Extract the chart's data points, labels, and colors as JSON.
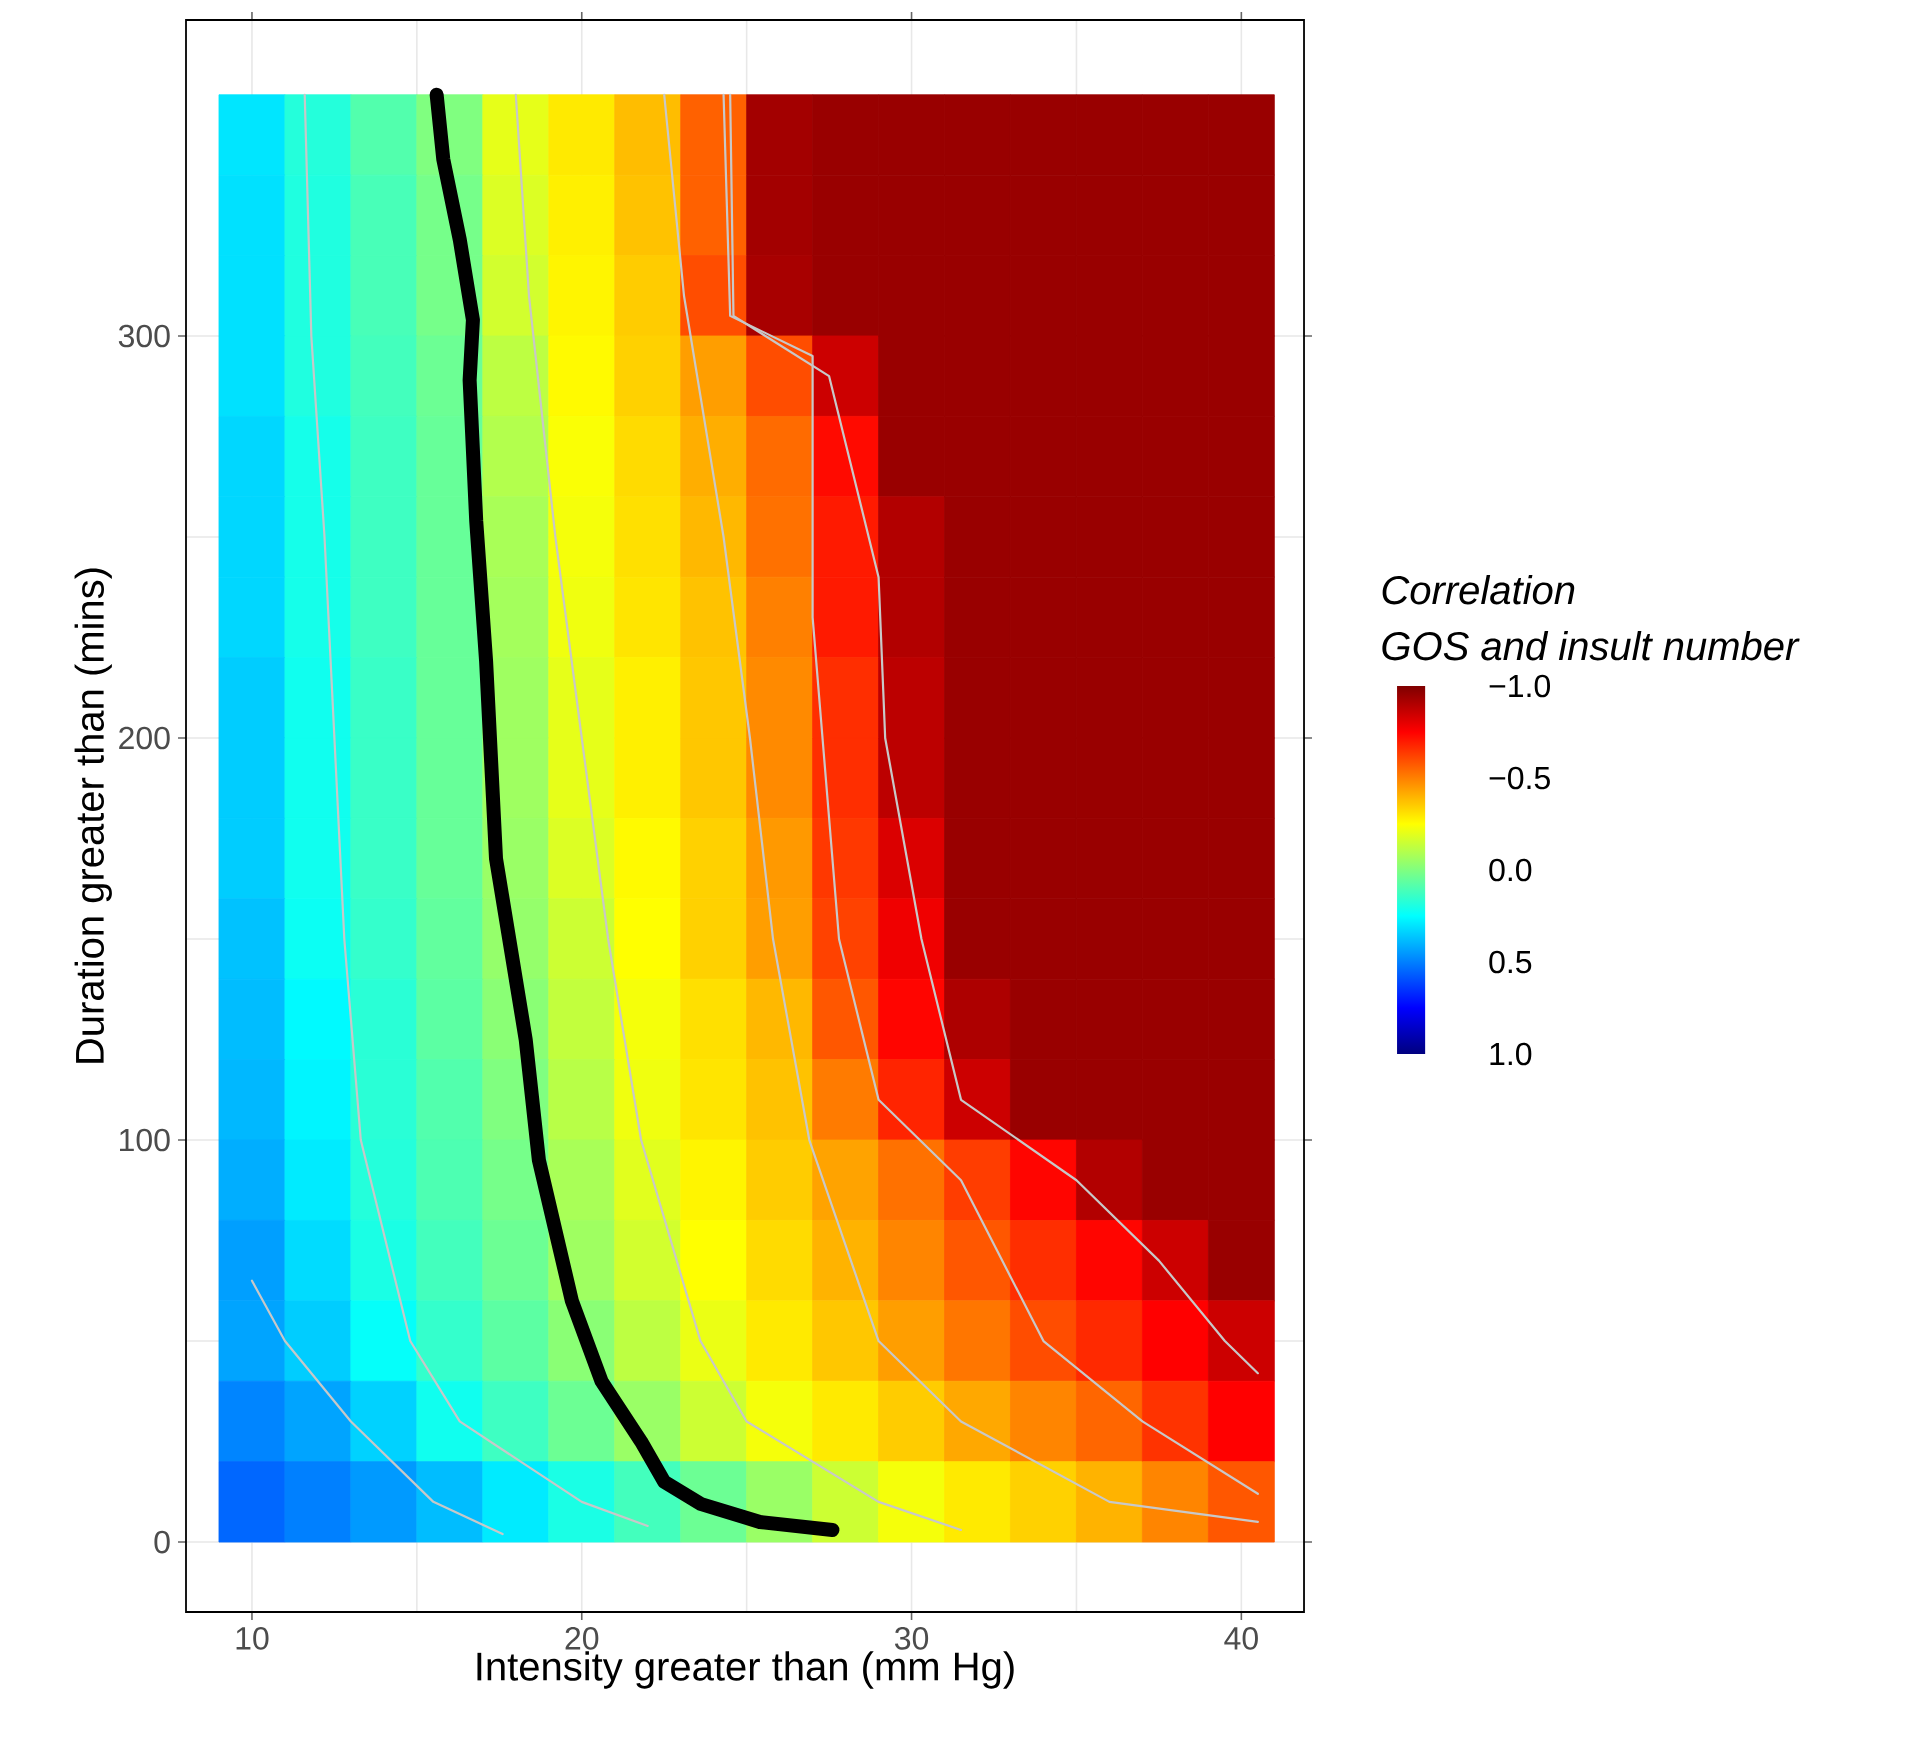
{
  "chart_data": {
    "type": "heatmap",
    "xlabel": "Intensity greater than (mm Hg)",
    "ylabel": "Duration greater than (mins)",
    "legend_title": "Correlation",
    "clabel": "GOS and insult number",
    "x": [
      10,
      12,
      14,
      16,
      18,
      20,
      22,
      24,
      26,
      28,
      30,
      32,
      34,
      36,
      38,
      40
    ],
    "y": [
      350,
      330,
      310,
      290,
      270,
      250,
      230,
      210,
      190,
      170,
      150,
      130,
      110,
      90,
      70,
      50,
      30,
      10
    ],
    "cells": [
      [
        0.3,
        0.18,
        0.09,
        0,
        -0.2,
        -0.29,
        -0.38,
        -0.56,
        -0.93,
        -0.95,
        -0.95,
        -0.95,
        -0.95,
        -0.95,
        -0.95,
        -0.95
      ],
      [
        0.31,
        0.19,
        0.11,
        0.02,
        -0.18,
        -0.28,
        -0.37,
        -0.56,
        -0.93,
        -0.95,
        -0.95,
        -0.95,
        -0.95,
        -0.95,
        -0.95,
        -0.95
      ],
      [
        0.31,
        0.19,
        0.11,
        0.02,
        -0.16,
        -0.27,
        -0.35,
        -0.6,
        -0.92,
        -0.95,
        -0.95,
        -0.95,
        -0.95,
        -0.95,
        -0.95,
        -0.95
      ],
      [
        0.31,
        0.19,
        0.12,
        0.04,
        -0.12,
        -0.26,
        -0.34,
        -0.44,
        -0.6,
        -0.85,
        -0.95,
        -0.95,
        -0.95,
        -0.95,
        -0.95,
        -0.95
      ],
      [
        0.33,
        0.21,
        0.13,
        0.05,
        -0.1,
        -0.24,
        -0.32,
        -0.41,
        -0.54,
        -0.73,
        -0.95,
        -0.95,
        -0.95,
        -0.95,
        -0.95,
        -0.95
      ],
      [
        0.33,
        0.21,
        0.13,
        0.05,
        -0.08,
        -0.23,
        -0.31,
        -0.39,
        -0.53,
        -0.7,
        -0.9,
        -0.95,
        -0.95,
        -0.95,
        -0.95,
        -0.95
      ],
      [
        0.33,
        0.21,
        0.13,
        0.05,
        -0.07,
        -0.22,
        -0.3,
        -0.37,
        -0.5,
        -0.7,
        -0.9,
        -0.95,
        -0.95,
        -0.95,
        -0.95,
        -0.95
      ],
      [
        0.35,
        0.22,
        0.14,
        0.05,
        -0.06,
        -0.2,
        -0.28,
        -0.36,
        -0.48,
        -0.66,
        -0.88,
        -0.95,
        -0.95,
        -0.95,
        -0.95,
        -0.95
      ],
      [
        0.35,
        0.22,
        0.14,
        0.05,
        -0.06,
        -0.2,
        -0.28,
        -0.36,
        -0.48,
        -0.66,
        -0.88,
        -0.95,
        -0.95,
        -0.95,
        -0.95,
        -0.95
      ],
      [
        0.35,
        0.22,
        0.14,
        0.05,
        -0.05,
        -0.18,
        -0.26,
        -0.34,
        -0.45,
        -0.64,
        -0.82,
        -0.95,
        -0.95,
        -0.95,
        -0.95,
        -0.95
      ],
      [
        0.37,
        0.23,
        0.15,
        0.06,
        -0.04,
        -0.15,
        -0.25,
        -0.34,
        -0.44,
        -0.62,
        -0.78,
        -0.95,
        -0.95,
        -0.95,
        -0.95,
        -0.95
      ],
      [
        0.38,
        0.26,
        0.17,
        0.07,
        -0.02,
        -0.13,
        -0.23,
        -0.31,
        -0.39,
        -0.58,
        -0.74,
        -0.91,
        -0.95,
        -0.95,
        -0.95,
        -0.95
      ],
      [
        0.39,
        0.27,
        0.17,
        0.09,
        0,
        -0.11,
        -0.22,
        -0.3,
        -0.37,
        -0.51,
        -0.68,
        -0.85,
        -0.95,
        -0.95,
        -0.95,
        -0.95
      ],
      [
        0.41,
        0.29,
        0.18,
        0.1,
        0.02,
        -0.08,
        -0.19,
        -0.27,
        -0.35,
        -0.43,
        -0.53,
        -0.63,
        -0.74,
        -0.9,
        -0.95,
        -0.95
      ],
      [
        0.44,
        0.32,
        0.2,
        0.12,
        0.04,
        -0.06,
        -0.16,
        -0.25,
        -0.32,
        -0.4,
        -0.49,
        -0.58,
        -0.66,
        -0.74,
        -0.85,
        -0.95
      ],
      [
        0.43,
        0.35,
        0.24,
        0.15,
        0.07,
        -0.02,
        -0.12,
        -0.21,
        -0.29,
        -0.36,
        -0.44,
        -0.52,
        -0.6,
        -0.67,
        -0.75,
        -0.85
      ],
      [
        0.49,
        0.43,
        0.34,
        0.22,
        0.13,
        0.04,
        -0.05,
        -0.15,
        -0.23,
        -0.29,
        -0.35,
        -0.42,
        -0.49,
        -0.55,
        -0.65,
        -0.75
      ],
      [
        0.55,
        0.5,
        0.45,
        0.38,
        0.29,
        0.2,
        0.12,
        0.04,
        -0.05,
        -0.15,
        -0.23,
        -0.29,
        -0.34,
        -0.4,
        -0.49,
        -0.58
      ]
    ],
    "series": [
      {
        "type": "line",
        "color": "#c8c8c8",
        "x": [
          10,
          11,
          13,
          15.5,
          17.6
        ],
        "values": [
          65,
          50,
          30,
          10,
          2
        ]
      },
      {
        "type": "line",
        "color": "#c8c8c8",
        "x": [
          11.6,
          11.8,
          12.2,
          12.5,
          12.8,
          13.3,
          14.8,
          16.3,
          20,
          22
        ],
        "values": [
          360,
          300,
          250,
          200,
          150,
          100,
          50,
          30,
          10,
          4
        ]
      },
      {
        "type": "line",
        "color": "#c8c8c8",
        "x": [
          18,
          18.4,
          19.2,
          20,
          20.8,
          21.8,
          23.6,
          25,
          29,
          31.5
        ],
        "values": [
          360,
          310,
          250,
          200,
          150,
          100,
          50,
          30,
          10,
          3
        ]
      },
      {
        "type": "line",
        "color": "#c8c8c8",
        "x": [
          22.5,
          23.1,
          24.3,
          25.1,
          25.8,
          26.9,
          29,
          31.5,
          36,
          40.5
        ],
        "values": [
          360,
          310,
          250,
          200,
          150,
          100,
          50,
          30,
          10,
          5
        ]
      },
      {
        "type": "line",
        "color": "#c8c8c8",
        "x": [
          24.3,
          24.5,
          27,
          27,
          27.3,
          27.8,
          29,
          31.5,
          34,
          37,
          40.5
        ],
        "values": [
          360,
          305,
          295,
          230,
          200,
          150,
          110,
          90,
          50,
          30,
          12
        ]
      },
      {
        "type": "line",
        "color": "#c8c8c8",
        "x": [
          24.5,
          24.6,
          27.5,
          29,
          29.2,
          30.3,
          31.5,
          35,
          37.5,
          39.5,
          40.5
        ],
        "values": [
          360,
          305,
          290,
          240,
          200,
          150,
          110,
          90,
          70,
          50,
          42
        ]
      },
      {
        "type": "line",
        "color": "#000000",
        "x": [
          27.6,
          25.4,
          23.6,
          22.5,
          21.8,
          20.6,
          19.7,
          18.7,
          18.3,
          17.4,
          17.1,
          16.8,
          16.6,
          16.7,
          16.3,
          15.8,
          15.6
        ],
        "values": [
          3,
          5,
          9.5,
          15,
          25,
          40,
          60,
          95,
          125,
          170,
          219,
          254,
          289,
          304,
          324,
          344,
          360
        ]
      }
    ],
    "xlim": [
      8,
      41.9
    ],
    "ylim": [
      -17.4,
      378.6
    ],
    "xticks": [
      10,
      20,
      30,
      40
    ],
    "yticks": [
      0,
      100,
      200,
      300
    ],
    "clim": [
      -1,
      1
    ],
    "cticks": [
      {
        "value": -1,
        "label": "−1.0"
      },
      {
        "value": -0.5,
        "label": "−0.5"
      },
      {
        "value": 0,
        "label": "0.0"
      },
      {
        "value": 0.5,
        "label": "0.5"
      },
      {
        "value": 1,
        "label": "1.0"
      }
    ],
    "grid": true
  }
}
